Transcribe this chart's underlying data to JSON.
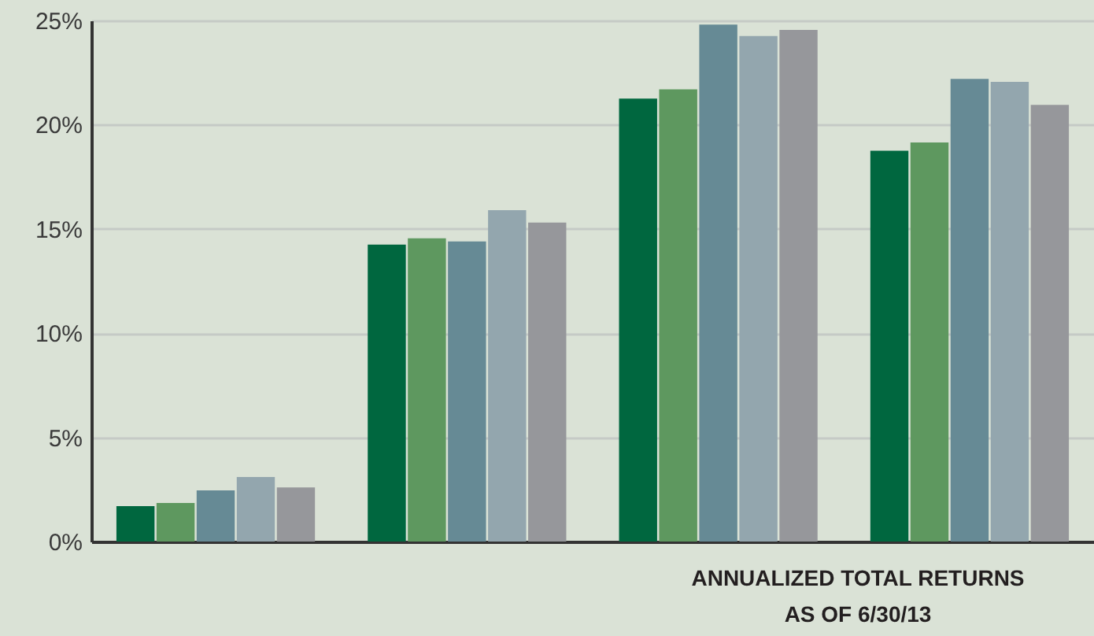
{
  "chart_data": {
    "type": "bar",
    "categories": [
      null,
      null,
      null,
      null
    ],
    "series": [
      {
        "color": "#00673f",
        "values": [
          1.7,
          14.25,
          21.25,
          18.75
        ]
      },
      {
        "color": "#5e985f",
        "values": [
          1.85,
          14.55,
          21.7,
          19.15
        ]
      },
      {
        "color": "#668a95",
        "values": [
          2.45,
          14.4,
          24.8,
          22.2
        ]
      },
      {
        "color": "#93a6ae",
        "values": [
          3.1,
          15.9,
          24.25,
          22.05
        ]
      },
      {
        "color": "#96979b",
        "values": [
          2.6,
          15.3,
          24.55,
          20.95
        ]
      }
    ],
    "ylim": [
      0,
      25
    ],
    "yticks": [
      {
        "value": 0,
        "label": "0%"
      },
      {
        "value": 5,
        "label": "5%"
      },
      {
        "value": 10,
        "label": "10%"
      },
      {
        "value": 15,
        "label": "15%"
      },
      {
        "value": 20,
        "label": "20%"
      },
      {
        "value": 25,
        "label": "25%"
      }
    ],
    "grid": "y",
    "tick_labels": "y",
    "annotations": [
      "ANNUALIZED TOTAL RETURNS",
      "AS OF 6/30/13"
    ]
  }
}
